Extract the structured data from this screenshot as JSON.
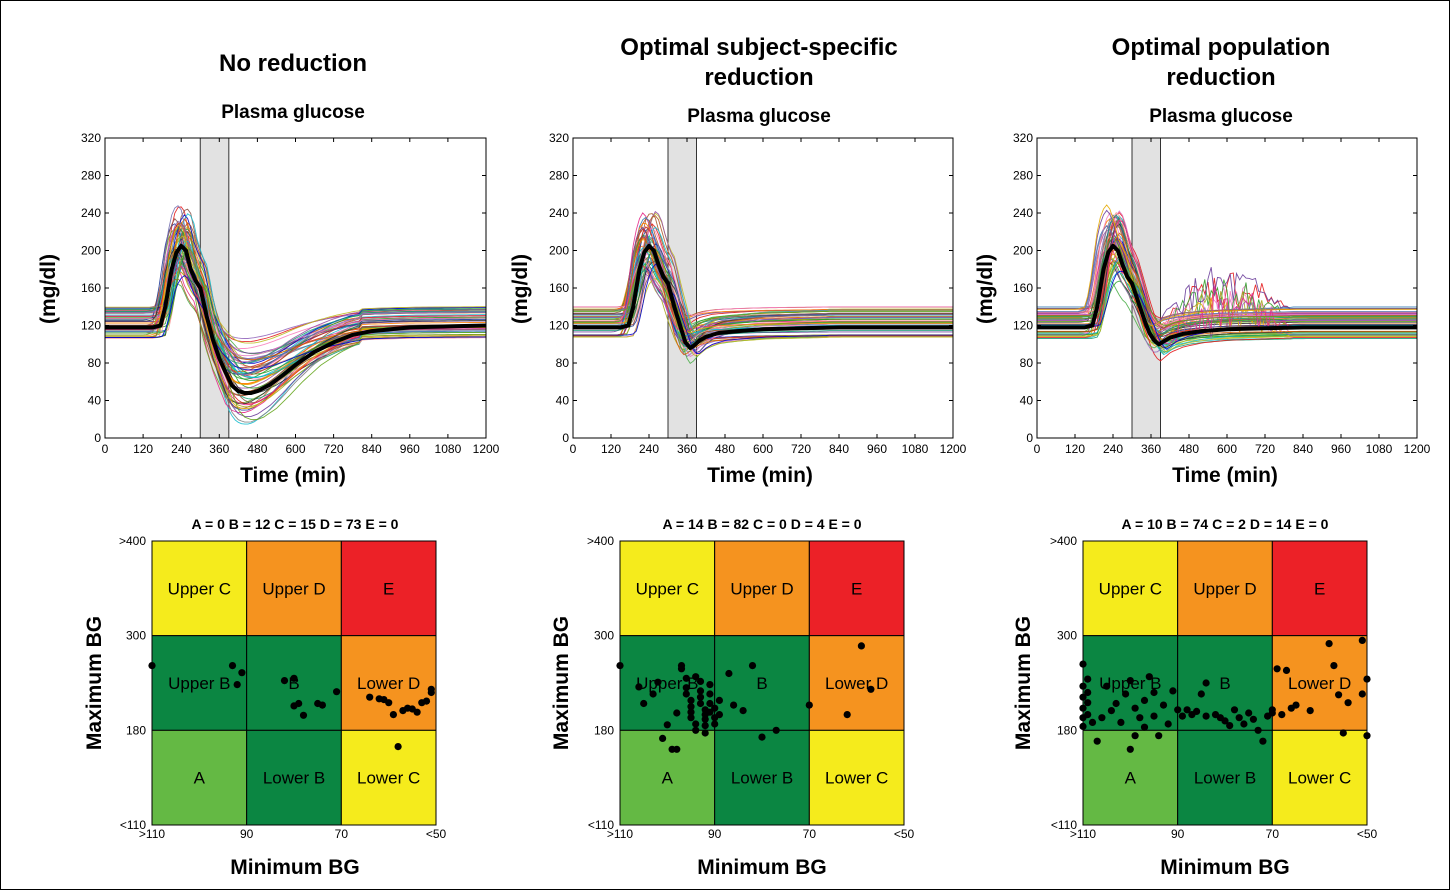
{
  "chart_data": [
    {
      "type": "line",
      "title": "No reduction",
      "subtitle": "Plasma glucose",
      "xlabel": "Time (min)",
      "ylabel": "(mg/dl)",
      "xlim": [
        0,
        1200
      ],
      "ylim": [
        0,
        320
      ],
      "xticks": [
        "0",
        "120",
        "240",
        "360",
        "480",
        "600",
        "720",
        "840",
        "960",
        "1080",
        "1200"
      ],
      "yticks": [
        "0",
        "40",
        "80",
        "120",
        "160",
        "200",
        "240",
        "280",
        "320"
      ],
      "shaded_interval": [
        300,
        390
      ],
      "mean_series": {
        "x": [
          0,
          150,
          175,
          190,
          210,
          225,
          240,
          255,
          270,
          285,
          300,
          320,
          340,
          360,
          380,
          400,
          420,
          440,
          460,
          480,
          520,
          560,
          600,
          660,
          720,
          780,
          840,
          900,
          960,
          1080,
          1200
        ],
        "y": [
          118,
          118,
          120,
          140,
          180,
          198,
          205,
          200,
          180,
          168,
          160,
          130,
          105,
          85,
          70,
          56,
          50,
          48,
          48,
          50,
          57,
          67,
          78,
          92,
          102,
          110,
          114,
          116,
          118,
          119,
          120
        ]
      }
    },
    {
      "type": "line",
      "title": "Optimal subject-specific\nreduction",
      "subtitle": "Plasma glucose",
      "xlabel": "Time (min)",
      "ylabel": "(mg/dl)",
      "xlim": [
        0,
        1200
      ],
      "ylim": [
        0,
        320
      ],
      "xticks": [
        "0",
        "120",
        "240",
        "360",
        "480",
        "600",
        "720",
        "840",
        "960",
        "1080",
        "1200"
      ],
      "yticks": [
        "0",
        "40",
        "80",
        "120",
        "160",
        "200",
        "240",
        "280",
        "320"
      ],
      "shaded_interval": [
        300,
        390
      ],
      "mean_series": {
        "x": [
          0,
          150,
          175,
          190,
          210,
          225,
          240,
          255,
          270,
          285,
          300,
          320,
          340,
          355,
          370,
          380,
          400,
          420,
          460,
          520,
          600,
          720,
          840,
          960,
          1080,
          1200
        ],
        "y": [
          118,
          118,
          120,
          140,
          180,
          198,
          205,
          200,
          185,
          172,
          165,
          140,
          118,
          102,
          96,
          98,
          104,
          108,
          112,
          114,
          116,
          117,
          118,
          118,
          118,
          118
        ]
      }
    },
    {
      "type": "line",
      "title": "Optimal population\nreduction",
      "subtitle": "Plasma glucose",
      "xlabel": "Time (min)",
      "ylabel": "(mg/dl)",
      "xlim": [
        0,
        1200
      ],
      "ylim": [
        0,
        320
      ],
      "xticks": [
        "0",
        "120",
        "240",
        "360",
        "480",
        "600",
        "720",
        "840",
        "960",
        "1080",
        "1200"
      ],
      "yticks": [
        "0",
        "40",
        "80",
        "120",
        "160",
        "200",
        "240",
        "280",
        "320"
      ],
      "shaded_interval": [
        300,
        390
      ],
      "mean_series": {
        "x": [
          0,
          150,
          175,
          190,
          210,
          225,
          240,
          255,
          270,
          285,
          300,
          320,
          340,
          355,
          370,
          385,
          400,
          420,
          460,
          520,
          600,
          720,
          840,
          960,
          1080,
          1200
        ],
        "y": [
          118,
          118,
          120,
          140,
          180,
          198,
          205,
          200,
          185,
          172,
          165,
          145,
          125,
          112,
          104,
          100,
          103,
          107,
          111,
          114,
          116,
          117,
          118,
          118,
          118,
          118
        ]
      }
    },
    {
      "type": "scatter",
      "title": "",
      "counts_label": "A = 0   B = 12   C = 15   D = 73   E = 0",
      "xlabel": "Minimum BG",
      "ylabel": "Maximum BG",
      "xticks": [
        ">110",
        "90",
        "70",
        "<50"
      ],
      "yticks": [
        ">400",
        "300",
        "180",
        "<110"
      ],
      "zones": [
        {
          "label": "Upper C",
          "color": "#f5eb1c",
          "col": 0,
          "row": 0
        },
        {
          "label": "Upper D",
          "color": "#f5931f",
          "col": 1,
          "row": 0
        },
        {
          "label": "E",
          "color": "#ec2127",
          "col": 2,
          "row": 0
        },
        {
          "label": "Upper B",
          "color": "#0b8642",
          "col": 0,
          "row": 1
        },
        {
          "label": "B",
          "color": "#0b8642",
          "col": 1,
          "row": 1
        },
        {
          "label": "Lower D",
          "color": "#f5931f",
          "col": 2,
          "row": 1
        },
        {
          "label": "A",
          "color": "#64b944",
          "col": 0,
          "row": 2
        },
        {
          "label": "Lower B",
          "color": "#0b8642",
          "col": 1,
          "row": 2
        },
        {
          "label": "Lower C",
          "color": "#f5eb1c",
          "col": 2,
          "row": 2
        }
      ],
      "points": [
        [
          111,
          262
        ],
        [
          93,
          262
        ],
        [
          92,
          238
        ],
        [
          91,
          253
        ],
        [
          82,
          243
        ],
        [
          80,
          246
        ],
        [
          79,
          214
        ],
        [
          80,
          211
        ],
        [
          78,
          199
        ],
        [
          75,
          214
        ],
        [
          74,
          212
        ],
        [
          71,
          229
        ],
        [
          64,
          222
        ],
        [
          62,
          220
        ],
        [
          61,
          219
        ],
        [
          60,
          215
        ],
        [
          59,
          200
        ],
        [
          57,
          205
        ],
        [
          56,
          208
        ],
        [
          55,
          207
        ],
        [
          54,
          203
        ],
        [
          53,
          215
        ],
        [
          52,
          217
        ],
        [
          58,
          168
        ],
        [
          51,
          232
        ],
        [
          51,
          228
        ]
      ]
    },
    {
      "type": "scatter",
      "title": "",
      "counts_label": "A = 14   B = 82   C = 0   D = 4   E = 0",
      "xlabel": "Minimum BG",
      "ylabel": "Maximum BG",
      "xticks": [
        ">110",
        "90",
        "70",
        "<50"
      ],
      "yticks": [
        ">400",
        "300",
        "180",
        "<110"
      ],
      "zones": [
        {
          "label": "Upper C",
          "color": "#f5eb1c",
          "col": 0,
          "row": 0
        },
        {
          "label": "Upper D",
          "color": "#f5931f",
          "col": 1,
          "row": 0
        },
        {
          "label": "E",
          "color": "#ec2127",
          "col": 2,
          "row": 0
        },
        {
          "label": "Upper B",
          "color": "#0b8642",
          "col": 0,
          "row": 1
        },
        {
          "label": "B",
          "color": "#0b8642",
          "col": 1,
          "row": 1
        },
        {
          "label": "Lower D",
          "color": "#f5931f",
          "col": 2,
          "row": 1
        },
        {
          "label": "A",
          "color": "#64b944",
          "col": 0,
          "row": 2
        },
        {
          "label": "Lower B",
          "color": "#0b8642",
          "col": 1,
          "row": 2
        },
        {
          "label": "Lower C",
          "color": "#f5eb1c",
          "col": 2,
          "row": 2
        }
      ],
      "points": [
        [
          110,
          262
        ],
        [
          106,
          235
        ],
        [
          105,
          214
        ],
        [
          103,
          226
        ],
        [
          102,
          241
        ],
        [
          101,
          174
        ],
        [
          100,
          187
        ],
        [
          99,
          166
        ],
        [
          98,
          166
        ],
        [
          98,
          202
        ],
        [
          97,
          262
        ],
        [
          97,
          258
        ],
        [
          96,
          246
        ],
        [
          96,
          234
        ],
        [
          96,
          226
        ],
        [
          95,
          218
        ],
        [
          95,
          210
        ],
        [
          95,
          203
        ],
        [
          95,
          196
        ],
        [
          94,
          188
        ],
        [
          94,
          180
        ],
        [
          94,
          248
        ],
        [
          93,
          242
        ],
        [
          93,
          230
        ],
        [
          93,
          222
        ],
        [
          93,
          214
        ],
        [
          92,
          206
        ],
        [
          92,
          200
        ],
        [
          92,
          194
        ],
        [
          92,
          186
        ],
        [
          92,
          178
        ],
        [
          91,
          238
        ],
        [
          91,
          226
        ],
        [
          91,
          214
        ],
        [
          91,
          203
        ],
        [
          90,
          196
        ],
        [
          90,
          188
        ],
        [
          90,
          208
        ],
        [
          89,
          218
        ],
        [
          89,
          200
        ],
        [
          87,
          252
        ],
        [
          86,
          212
        ],
        [
          84,
          205
        ],
        [
          82,
          262
        ],
        [
          80,
          175
        ],
        [
          77,
          180
        ],
        [
          70,
          212
        ],
        [
          59,
          287
        ],
        [
          57,
          232
        ],
        [
          62,
          200
        ]
      ]
    },
    {
      "type": "scatter",
      "title": "",
      "counts_label": "A = 10   B = 74   C = 2   D = 14   E = 0",
      "xlabel": "Minimum BG",
      "ylabel": "Maximum BG",
      "xticks": [
        ">110",
        "90",
        "70",
        "<50"
      ],
      "yticks": [
        ">400",
        "300",
        "180",
        "<110"
      ],
      "zones": [
        {
          "label": "Upper C",
          "color": "#f5eb1c",
          "col": 0,
          "row": 0
        },
        {
          "label": "Upper D",
          "color": "#f5931f",
          "col": 1,
          "row": 0
        },
        {
          "label": "E",
          "color": "#ec2127",
          "col": 2,
          "row": 0
        },
        {
          "label": "Upper B",
          "color": "#0b8642",
          "col": 0,
          "row": 1
        },
        {
          "label": "B",
          "color": "#0b8642",
          "col": 1,
          "row": 1
        },
        {
          "label": "Lower D",
          "color": "#f5931f",
          "col": 2,
          "row": 1
        },
        {
          "label": "A",
          "color": "#64b944",
          "col": 0,
          "row": 2
        },
        {
          "label": "Lower B",
          "color": "#0b8642",
          "col": 1,
          "row": 2
        },
        {
          "label": "Lower C",
          "color": "#f5eb1c",
          "col": 2,
          "row": 2
        }
      ],
      "points": [
        [
          110,
          264
        ],
        [
          110,
          236
        ],
        [
          110,
          222
        ],
        [
          110,
          208
        ],
        [
          110,
          196
        ],
        [
          110,
          185
        ],
        [
          109,
          245
        ],
        [
          109,
          228
        ],
        [
          109,
          215
        ],
        [
          109,
          200
        ],
        [
          108,
          190
        ],
        [
          107,
          172
        ],
        [
          106,
          196
        ],
        [
          105,
          236
        ],
        [
          104,
          205
        ],
        [
          103,
          214
        ],
        [
          102,
          190
        ],
        [
          101,
          226
        ],
        [
          100,
          243
        ],
        [
          100,
          166
        ],
        [
          99,
          176
        ],
        [
          99,
          208
        ],
        [
          98,
          196
        ],
        [
          97,
          184
        ],
        [
          97,
          218
        ],
        [
          96,
          248
        ],
        [
          95,
          228
        ],
        [
          95,
          198
        ],
        [
          94,
          176
        ],
        [
          93,
          212
        ],
        [
          92,
          188
        ],
        [
          91,
          230
        ],
        [
          90,
          206
        ],
        [
          89,
          198
        ],
        [
          88,
          206
        ],
        [
          87,
          200
        ],
        [
          86,
          204
        ],
        [
          85,
          226
        ],
        [
          84,
          198
        ],
        [
          84,
          240
        ],
        [
          82,
          200
        ],
        [
          81,
          196
        ],
        [
          80,
          192
        ],
        [
          79,
          186
        ],
        [
          78,
          206
        ],
        [
          77,
          196
        ],
        [
          76,
          188
        ],
        [
          75,
          202
        ],
        [
          74,
          194
        ],
        [
          73,
          180
        ],
        [
          72,
          172
        ],
        [
          71,
          198
        ],
        [
          70,
          202
        ],
        [
          70,
          206
        ],
        [
          69,
          258
        ],
        [
          68,
          200
        ],
        [
          67,
          256
        ],
        [
          66,
          208
        ],
        [
          65,
          212
        ],
        [
          62,
          205
        ],
        [
          58,
          290
        ],
        [
          57,
          262
        ],
        [
          56,
          225
        ],
        [
          55,
          178
        ],
        [
          54,
          215
        ],
        [
          51,
          294
        ],
        [
          51,
          226
        ],
        [
          50,
          245
        ],
        [
          50,
          176
        ]
      ]
    }
  ]
}
